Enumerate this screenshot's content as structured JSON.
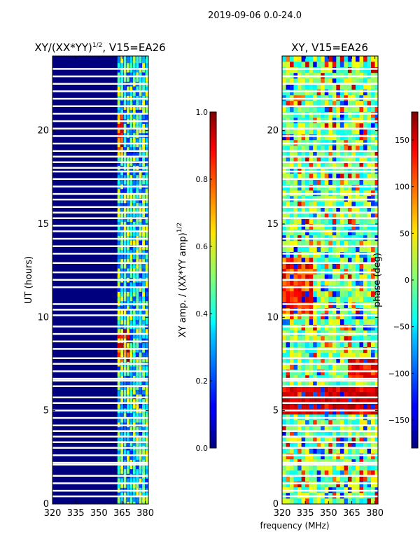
{
  "chart_data": {
    "suptitle": "2019-09-06 0.0-24.0",
    "xlabel": "frequency (MHz)",
    "x_range": [
      320,
      382
    ],
    "y_range": [
      0,
      24
    ],
    "x_ticks": [
      "320",
      "335",
      "350",
      "365",
      "380"
    ],
    "x_tick_values": [
      320,
      335,
      350,
      365,
      380
    ],
    "y_ticks": [
      "0",
      "5",
      "10",
      "15",
      "20"
    ],
    "y_tick_values": [
      0,
      5,
      10,
      15,
      20
    ],
    "panels": [
      {
        "type": "heatmap",
        "title_prefix": "XY/(XX*YY)",
        "title_sup": "1/2",
        "title_suffix": ", V15=EA26",
        "ylabel": "UT (hours)",
        "colorbar_label": "XY amp. / (XX*YY amp)",
        "colorbar_sup": "1/2",
        "cbar_range": [
          0.0,
          1.0
        ],
        "cbar_ticks": [
          "0.0",
          "0.2",
          "0.4",
          "0.6",
          "0.8",
          "1.0"
        ],
        "cbar_tick_values": [
          0.0,
          0.2,
          0.4,
          0.6,
          0.8,
          1.0
        ]
      },
      {
        "type": "heatmap",
        "title_prefix": "XY, V15=EA26",
        "title_sup": "",
        "title_suffix": "",
        "ylabel": "",
        "colorbar_label": "phase (deg)",
        "colorbar_sup": "",
        "cbar_range": [
          -180,
          180
        ],
        "cbar_ticks": [
          "150",
          "100",
          "50",
          "0",
          "−50",
          "−100",
          "−150"
        ],
        "cbar_tick_values": [
          150,
          100,
          50,
          0,
          -50,
          -100,
          -150
        ]
      }
    ],
    "flagged_hours": [
      0.4,
      0.7,
      1.1,
      1.5,
      2.1,
      2.2,
      2.6,
      3.0,
      3.3,
      3.6,
      3.9,
      4.2,
      4.6,
      5.0,
      5.4,
      5.7,
      6.3,
      6.6,
      6.7,
      7.1,
      7.5,
      7.8,
      8.3,
      8.7,
      9.1,
      9.5,
      10.1,
      10.4,
      10.7,
      11.6,
      12.0,
      12.4,
      12.9,
      13.4,
      13.8,
      14.2,
      14.6,
      14.9,
      15.3,
      15.6,
      15.9,
      16.3,
      16.6,
      17.0,
      17.4,
      17.8,
      18.0,
      18.3,
      18.6,
      18.9,
      19.3,
      19.7,
      20.1,
      20.5,
      20.9,
      21.3,
      21.7,
      22.1,
      22.5,
      22.9,
      23.3
    ]
  }
}
